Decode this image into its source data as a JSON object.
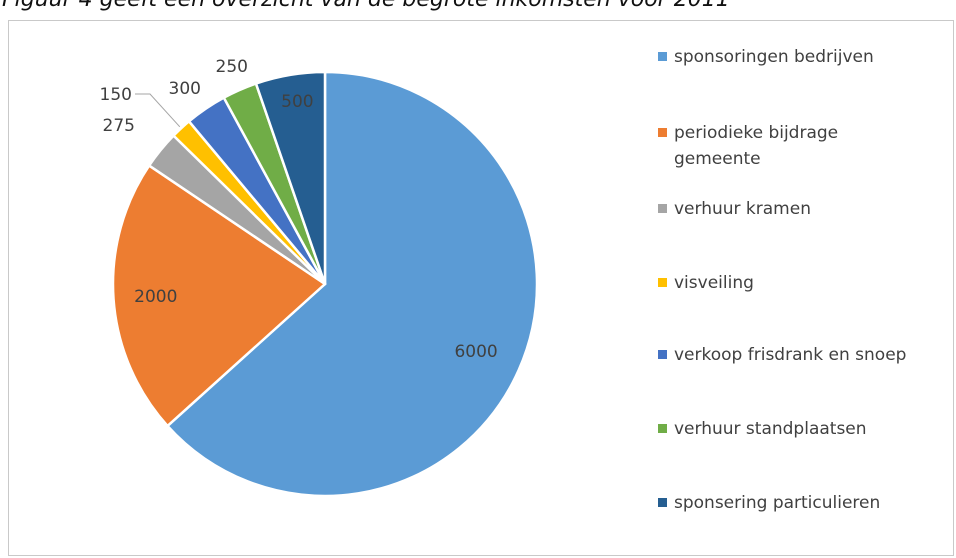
{
  "caption": "Figuur 4 geeft een overzicht van de begrote inkomsten voor 2011",
  "chart_data": {
    "type": "pie",
    "title": "",
    "legend_position": "right",
    "slices": [
      {
        "label": "sponsoringen bedrijven",
        "value": 6000,
        "color": "#5B9BD5"
      },
      {
        "label": "periodieke bijdrage gemeente",
        "value": 2000,
        "color": "#ED7D31"
      },
      {
        "label": "verhuur kramen",
        "value": 275,
        "color": "#A5A5A5"
      },
      {
        "label": "visveiling",
        "value": 150,
        "color": "#FFC000"
      },
      {
        "label": "verkoop frisdrank en snoep",
        "value": 300,
        "color": "#4472C4"
      },
      {
        "label": "verhuur standplaatsen",
        "value": 250,
        "color": "#70AD47"
      },
      {
        "label": "sponsering particulieren",
        "value": 500,
        "color": "#255E91"
      }
    ]
  }
}
